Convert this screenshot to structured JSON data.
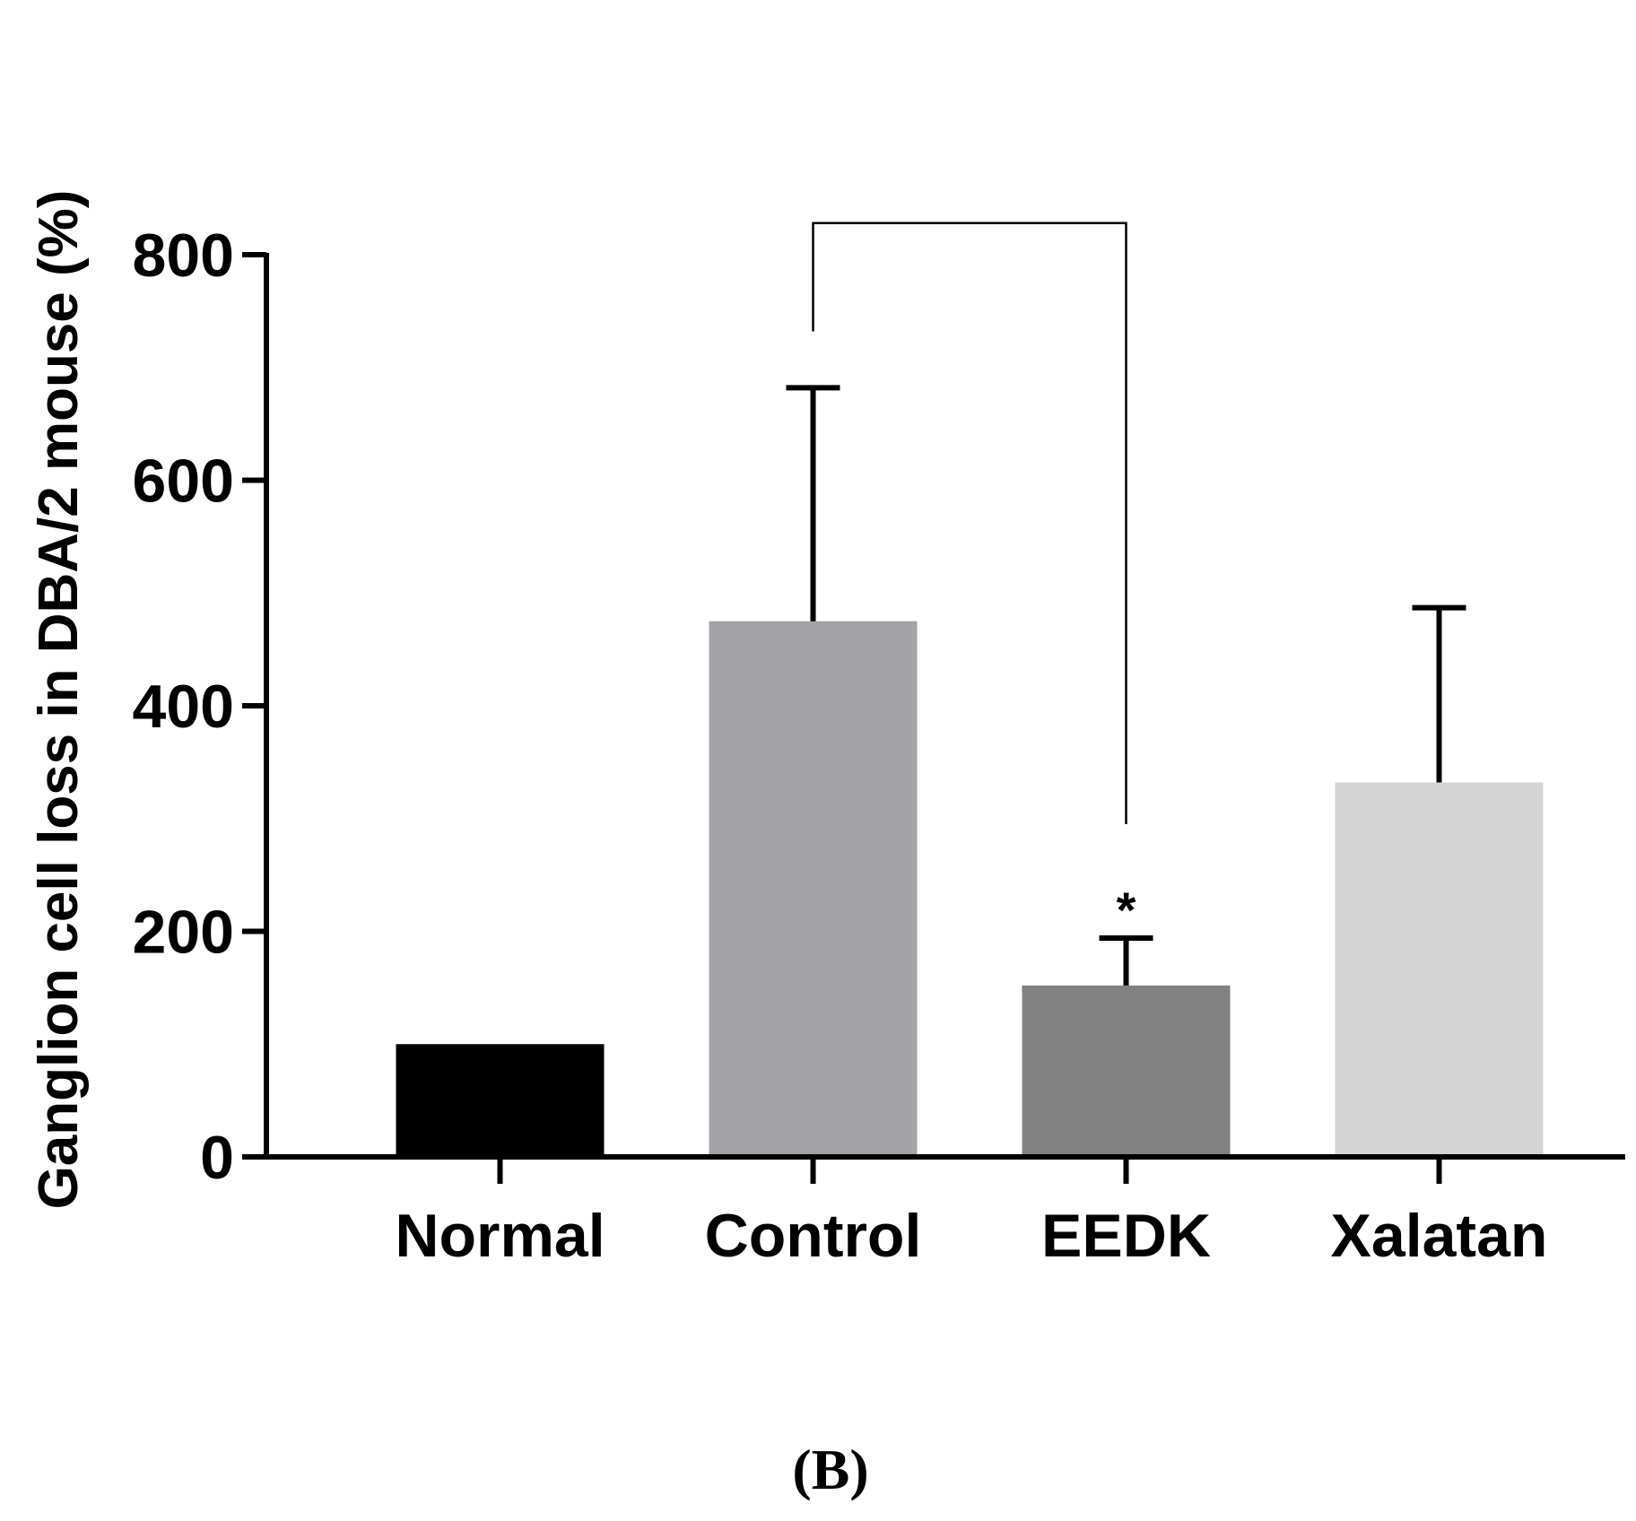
{
  "chart_data": {
    "type": "bar",
    "title": "",
    "xlabel": "",
    "ylabel": "Ganglion cell loss in DBA/2 mouse (%)",
    "ylim": [
      0,
      800
    ],
    "yticks": [
      0,
      200,
      400,
      600,
      800
    ],
    "categories": [
      "Normal",
      "Control",
      "EEDK",
      "Xalatan"
    ],
    "values": [
      100,
      475,
      152,
      332
    ],
    "errors": [
      0,
      207,
      42,
      155
    ],
    "colors": [
      "#000000",
      "#a3a3a7",
      "#818181",
      "#d4d4d4"
    ],
    "grid": false,
    "significance": {
      "from": "Control",
      "to": "EEDK",
      "mark": "*",
      "bracket_top": 828,
      "left_drop_to": 732,
      "right_drop_to": 295
    }
  },
  "panel_label": "(B)"
}
